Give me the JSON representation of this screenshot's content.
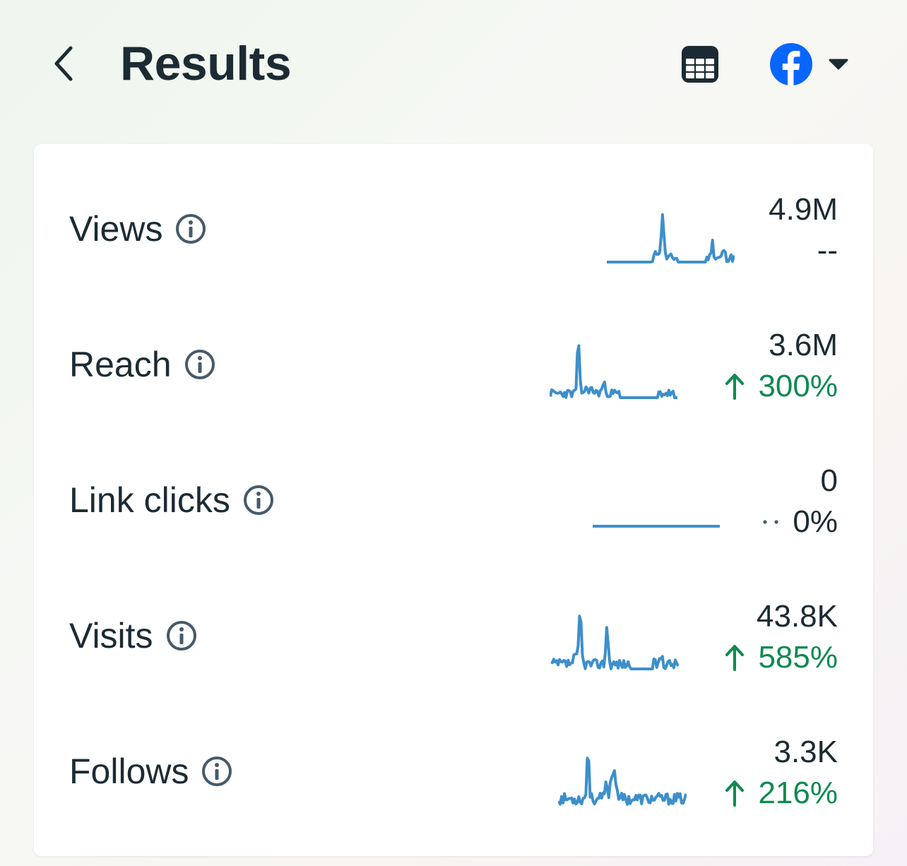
{
  "header": {
    "title": "Results",
    "back_icon": "chevron-left-icon",
    "table_icon": "table-icon",
    "platform_icon": "facebook-icon",
    "dropdown_icon": "caret-down-icon"
  },
  "colors": {
    "sparkline": "#3d8fcb",
    "positive": "#0f8a4f",
    "text": "#1c2b33",
    "facebook": "#0866ff"
  },
  "metrics": [
    {
      "label": "Views",
      "value": "4.9M",
      "change": "--",
      "trend": "none"
    },
    {
      "label": "Reach",
      "value": "3.6M",
      "change": "300%",
      "trend": "up"
    },
    {
      "label": "Link clicks",
      "value": "0",
      "change": "0%",
      "trend": "flat"
    },
    {
      "label": "Visits",
      "value": "43.8K",
      "change": "585%",
      "trend": "up"
    },
    {
      "label": "Follows",
      "value": "3.3K",
      "change": "216%",
      "trend": "up"
    }
  ]
}
